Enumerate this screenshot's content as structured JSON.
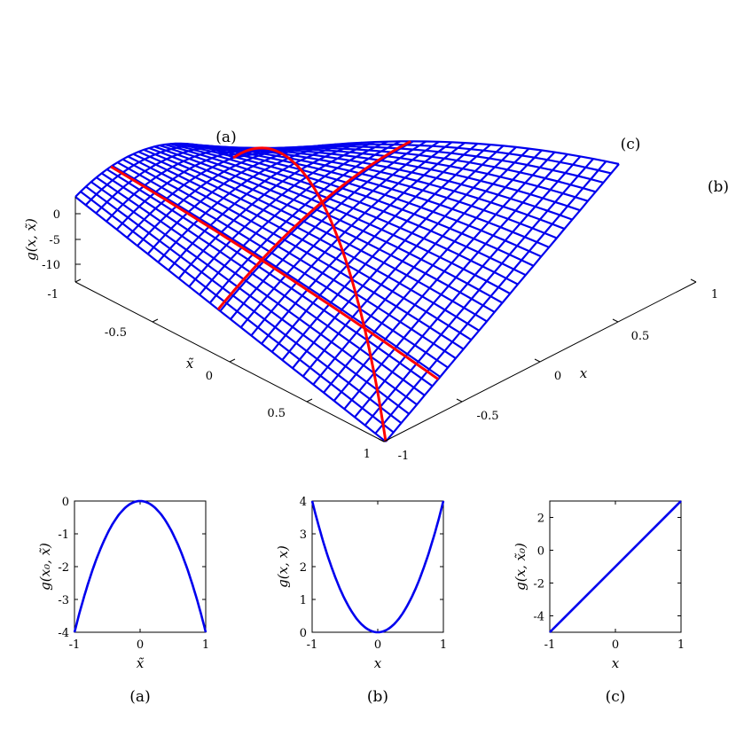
{
  "chart_data": [
    {
      "id": "surface",
      "type": "surface",
      "zlabel": "g(x, x̃)",
      "xlabel": "x",
      "ylabel": "x̃",
      "x_ticks": [
        "-1",
        "-0.5",
        "0",
        "0.5",
        "1"
      ],
      "y_ticks": [
        "-1",
        "-0.5",
        "0",
        "0.5",
        "1"
      ],
      "z_ticks": [
        "0",
        "-5",
        "-10"
      ],
      "xlim": [
        -1,
        1
      ],
      "ylim": [
        -1,
        1
      ],
      "zlim": [
        -12,
        3
      ],
      "grid_n": 31,
      "surface_color": "#0000ee",
      "slice_color": "#ff0000",
      "annotations": [
        "(a)",
        "(b)",
        "(c)"
      ]
    },
    {
      "id": "a",
      "type": "line",
      "caption": "(a)",
      "xlabel": "x̃",
      "ylabel": "g(x₀, x̃)",
      "xlim": [
        -1,
        1
      ],
      "ylim": [
        -4,
        0
      ],
      "x_ticks": [
        -1,
        0,
        1
      ],
      "x_tick_labels": [
        "-1",
        "0",
        "1"
      ],
      "y_ticks": [
        0,
        -1,
        -2,
        -3,
        -4
      ],
      "y_tick_labels": [
        "0",
        "-1",
        "-2",
        "-3",
        "-4"
      ],
      "series": [
        {
          "x": [
            -1,
            -0.75,
            -0.5,
            -0.25,
            0,
            0.25,
            0.5,
            0.75,
            1
          ],
          "values": [
            -4,
            -2.25,
            -1,
            -0.25,
            0,
            -0.25,
            -1,
            -2.25,
            -4
          ]
        }
      ],
      "color": "#0000ee"
    },
    {
      "id": "b",
      "type": "line",
      "caption": "(b)",
      "xlabel": "x",
      "ylabel": "g(x, x)",
      "xlim": [
        -1,
        1
      ],
      "ylim": [
        0,
        4
      ],
      "x_ticks": [
        -1,
        0,
        1
      ],
      "x_tick_labels": [
        "-1",
        "0",
        "1"
      ],
      "y_ticks": [
        0,
        1,
        2,
        3,
        4
      ],
      "y_tick_labels": [
        "0",
        "1",
        "2",
        "3",
        "4"
      ],
      "series": [
        {
          "x": [
            -1,
            -0.75,
            -0.5,
            -0.25,
            0,
            0.25,
            0.5,
            0.75,
            1
          ],
          "values": [
            4,
            2.25,
            1,
            0.25,
            0,
            0.25,
            1,
            2.25,
            4
          ]
        }
      ],
      "color": "#0000ee"
    },
    {
      "id": "c",
      "type": "line",
      "caption": "(c)",
      "xlabel": "x",
      "ylabel": "g(x, x̃₀)",
      "xlim": [
        -1,
        1
      ],
      "ylim": [
        -5,
        3
      ],
      "x_ticks": [
        -1,
        0,
        1
      ],
      "x_tick_labels": [
        "-1",
        "0",
        "1"
      ],
      "y_ticks": [
        2,
        0,
        -2,
        -4
      ],
      "y_tick_labels": [
        "2",
        "0",
        "-2",
        "-4"
      ],
      "series": [
        {
          "x": [
            -1,
            1
          ],
          "values": [
            -5,
            3
          ]
        }
      ],
      "color": "#0000ee"
    }
  ]
}
